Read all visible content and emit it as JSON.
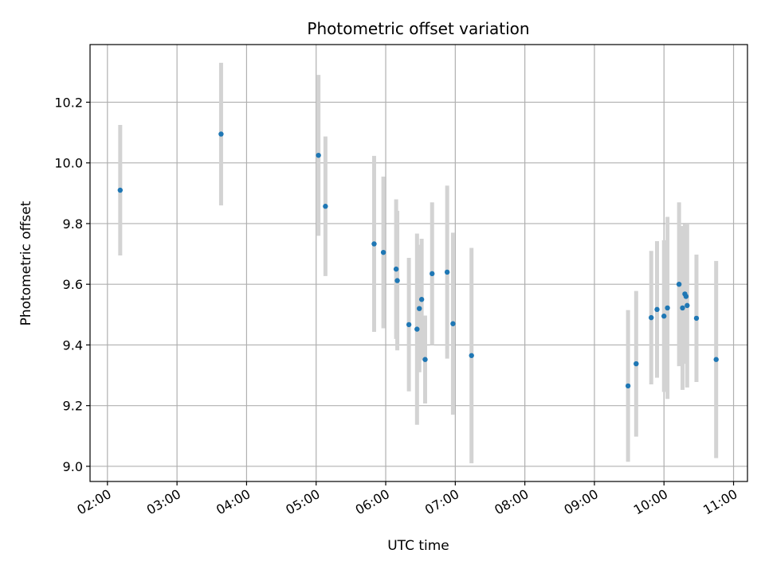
{
  "chart_data": {
    "type": "scatter",
    "title": "Photometric offset variation",
    "xlabel": "UTC time",
    "ylabel": "Photometric offset",
    "x_ticks": [
      "02:00",
      "03:00",
      "04:00",
      "05:00",
      "06:00",
      "07:00",
      "08:00",
      "09:00",
      "10:00",
      "11:00"
    ],
    "y_ticks": [
      "9.0",
      "9.2",
      "9.4",
      "9.6",
      "9.8",
      "10.0",
      "10.2"
    ],
    "xlim": [
      "01:45",
      "11:12"
    ],
    "ylim": [
      8.95,
      10.39
    ],
    "grid": true,
    "legend": "none",
    "colors": {
      "points": "#1f77b4",
      "errorbars": "#d3d3d3",
      "grid": "#b0b0b0"
    },
    "points": [
      {
        "x": "02:11",
        "y": 9.91,
        "err": 0.215
      },
      {
        "x": "03:38",
        "y": 10.095,
        "err": 0.235
      },
      {
        "x": "05:02",
        "y": 10.025,
        "err": 0.265
      },
      {
        "x": "05:08",
        "y": 9.857,
        "err": 0.23
      },
      {
        "x": "05:50",
        "y": 9.733,
        "err": 0.29
      },
      {
        "x": "05:58",
        "y": 9.705,
        "err": 0.25
      },
      {
        "x": "06:09",
        "y": 9.65,
        "err": 0.23
      },
      {
        "x": "06:10",
        "y": 9.612,
        "err": 0.23
      },
      {
        "x": "06:20",
        "y": 9.467,
        "err": 0.22
      },
      {
        "x": "06:27",
        "y": 9.452,
        "err": 0.315
      },
      {
        "x": "06:29",
        "y": 9.52,
        "err": 0.21
      },
      {
        "x": "06:31",
        "y": 9.55,
        "err": 0.2
      },
      {
        "x": "06:34",
        "y": 9.352,
        "err": 0.145
      },
      {
        "x": "06:40",
        "y": 9.635,
        "err": 0.235
      },
      {
        "x": "06:53",
        "y": 9.64,
        "err": 0.285
      },
      {
        "x": "06:58",
        "y": 9.47,
        "err": 0.3
      },
      {
        "x": "07:14",
        "y": 9.365,
        "err": 0.355
      },
      {
        "x": "09:29",
        "y": 9.265,
        "err": 0.25
      },
      {
        "x": "09:36",
        "y": 9.338,
        "err": 0.24
      },
      {
        "x": "09:49",
        "y": 9.49,
        "err": 0.22
      },
      {
        "x": "09:54",
        "y": 9.517,
        "err": 0.225
      },
      {
        "x": "10:00",
        "y": 9.495,
        "err": 0.25
      },
      {
        "x": "10:03",
        "y": 9.522,
        "err": 0.3
      },
      {
        "x": "10:13",
        "y": 9.6,
        "err": 0.27
      },
      {
        "x": "10:16",
        "y": 9.522,
        "err": 0.27
      },
      {
        "x": "10:18",
        "y": 9.568,
        "err": 0.23
      },
      {
        "x": "10:19",
        "y": 9.56,
        "err": 0.2
      },
      {
        "x": "10:20",
        "y": 9.53,
        "err": 0.27
      },
      {
        "x": "10:28",
        "y": 9.488,
        "err": 0.21
      },
      {
        "x": "10:45",
        "y": 9.352,
        "err": 0.325
      }
    ]
  }
}
